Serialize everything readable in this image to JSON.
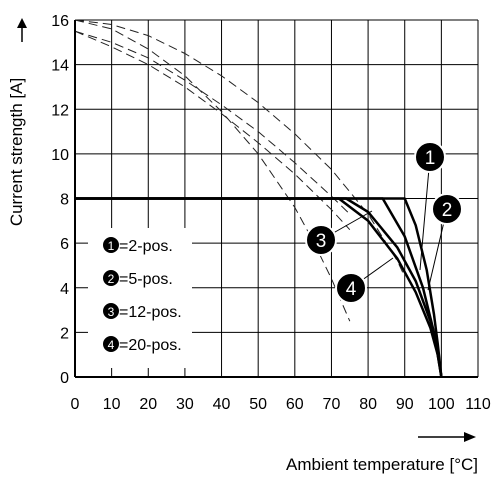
{
  "chart_data": {
    "type": "line",
    "xlabel": "Ambient temperature [°C]",
    "ylabel": "Current strength [A]",
    "xlim": [
      0,
      110
    ],
    "ylim": [
      0,
      16
    ],
    "x_ticks": [
      "0",
      "10",
      "20",
      "30",
      "40",
      "50",
      "60",
      "70",
      "80",
      "90",
      "100",
      "110"
    ],
    "y_ticks": [
      "0",
      "2",
      "4",
      "6",
      "8",
      "10",
      "12",
      "14",
      "16"
    ],
    "grid": true,
    "legend_position": "left",
    "series": [
      {
        "name": "=2-pos.",
        "marker": "1",
        "derating": {
          "x": [
            0,
            90,
            93,
            96,
            98,
            99,
            100
          ],
          "y": [
            8,
            8,
            6.8,
            4.8,
            2.8,
            1.5,
            0
          ]
        },
        "dashed": {
          "x": [
            0,
            10,
            20,
            30,
            40,
            50,
            60,
            70,
            80,
            88,
            90
          ],
          "y": [
            16,
            15.8,
            15.3,
            14.5,
            13.5,
            12.3,
            10.9,
            9.3,
            7.3,
            5.2,
            4.5
          ]
        }
      },
      {
        "name": "=5-pos.",
        "marker": "2",
        "derating": {
          "x": [
            0,
            84,
            90,
            95,
            98,
            100
          ],
          "y": [
            8,
            8,
            6.3,
            4.0,
            2.0,
            0
          ]
        },
        "dashed": {
          "x": [
            0,
            10,
            20,
            30,
            40,
            50,
            60,
            65,
            70,
            75
          ],
          "y": [
            16,
            15.6,
            14.7,
            13.5,
            11.9,
            10.0,
            7.6,
            6.1,
            4.4,
            2.5
          ]
        }
      },
      {
        "name": "=12-pos.",
        "marker": "3",
        "derating": {
          "x": [
            0,
            74,
            80,
            88,
            93,
            97,
            99,
            100
          ],
          "y": [
            8,
            8,
            7.4,
            5.8,
            4.3,
            2.5,
            1.2,
            0
          ]
        },
        "dashed": {
          "x": [
            0,
            10,
            20,
            30,
            40,
            50,
            60,
            70,
            75
          ],
          "y": [
            15.5,
            14.8,
            14.0,
            13.0,
            11.8,
            10.5,
            9.1,
            7.5,
            6.6
          ]
        }
      },
      {
        "name": "=20-pos.",
        "marker": "4",
        "derating": {
          "x": [
            0,
            72,
            80,
            88,
            93,
            97,
            99,
            100
          ],
          "y": [
            8,
            8,
            7.0,
            5.3,
            3.8,
            2.2,
            1.0,
            0
          ]
        },
        "dashed": {
          "x": [
            0,
            10,
            20,
            30,
            40,
            50,
            60,
            70,
            75
          ],
          "y": [
            15.5,
            15.0,
            14.3,
            13.3,
            12.2,
            11.0,
            9.6,
            8.1,
            7.3
          ]
        }
      }
    ],
    "callouts": [
      "1",
      "2",
      "3",
      "4"
    ]
  }
}
